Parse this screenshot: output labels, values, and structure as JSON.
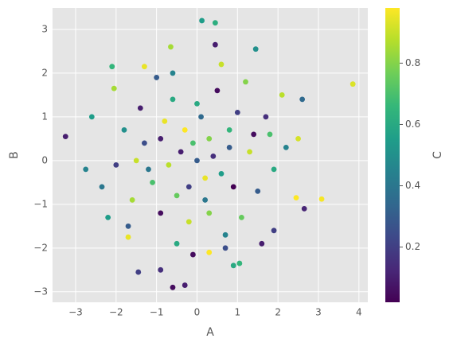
{
  "chart_data": {
    "type": "scatter",
    "x_label": "A",
    "y_label": "B",
    "colorbar_label": "C",
    "colormap": "viridis",
    "grid": true,
    "xlim": [
      -3.57,
      4.22
    ],
    "ylim": [
      -3.24,
      3.49
    ],
    "clim": [
      0.02,
      0.98
    ],
    "xticks": [
      {
        "value": -3,
        "label": "−3"
      },
      {
        "value": -2,
        "label": "−2"
      },
      {
        "value": -1,
        "label": "−1"
      },
      0,
      1,
      2,
      3,
      4
    ],
    "yticks": [
      {
        "value": -3,
        "label": "−3"
      },
      {
        "value": -2,
        "label": "−2"
      },
      {
        "value": -1,
        "label": "−1"
      },
      0,
      1,
      2,
      3
    ],
    "cticks": [
      0.2,
      0.4,
      0.6,
      0.8
    ],
    "x": [
      3.85,
      -3.25,
      3.08,
      0.12,
      0.45,
      -2.1,
      2.65,
      -0.6,
      0.9,
      -1.45,
      -2.75,
      2.6,
      -2.6,
      -0.65,
      0.45,
      1.45,
      -1.7,
      2.45,
      2.1,
      -2.05,
      0.3,
      -0.1,
      1.9,
      -1.3,
      -0.9,
      -0.3,
      1.05,
      -2.35,
      2.5,
      -0.5,
      0.0,
      0.3,
      -0.4,
      0.6,
      -0.8,
      1.0,
      -1.1,
      0.2,
      1.3,
      -1.3,
      0.5,
      -0.6,
      1.5,
      -1.6,
      0.8,
      -0.2,
      1.7,
      -1.8,
      0.1,
      -0.9,
      1.1,
      -0.3,
      0.7,
      -1.4,
      1.9,
      -2.0,
      0.4,
      -0.7,
      0.9,
      -0.1,
      1.2,
      -1.0,
      2.2,
      -2.2,
      0.6,
      -0.5,
      1.6,
      -1.7,
      0.2,
      -0.2,
      0.0,
      -1.2,
      1.4,
      0.8,
      -0.9,
      0.3,
      -0.6,
      1.8,
      -1.5,
      0.7
    ],
    "values": [
      1.75,
      0.55,
      -0.88,
      3.2,
      3.15,
      2.15,
      -1.1,
      -2.9,
      -2.4,
      -2.55,
      -0.2,
      1.4,
      1.0,
      2.6,
      2.65,
      2.55,
      -1.75,
      -0.85,
      1.5,
      1.65,
      -2.1,
      -2.15,
      -1.6,
      2.15,
      -2.5,
      -2.85,
      -2.35,
      -0.6,
      0.5,
      -0.8,
      0.0,
      0.5,
      0.2,
      -0.3,
      0.9,
      1.1,
      -0.5,
      -0.9,
      0.2,
      0.4,
      1.6,
      1.4,
      -0.7,
      -0.9,
      0.7,
      -1.4,
      1.0,
      0.7,
      1.0,
      -1.2,
      -1.3,
      0.7,
      -1.7,
      1.2,
      -0.2,
      -0.1,
      0.1,
      -0.1,
      -0.6,
      0.4,
      1.8,
      1.9,
      0.3,
      -1.3,
      2.2,
      -1.9,
      -1.9,
      -1.5,
      -0.4,
      -0.6,
      1.3,
      -0.2,
      0.6,
      0.3,
      0.5,
      -1.2,
      2.0,
      0.6,
      0.0,
      -2.0
    ],
    "c": [
      0.93,
      0.1,
      0.97,
      0.55,
      0.62,
      0.65,
      0.12,
      0.05,
      0.6,
      0.2,
      0.45,
      0.35,
      0.55,
      0.85,
      0.1,
      0.5,
      0.95,
      0.98,
      0.88,
      0.85,
      0.98,
      0.05,
      0.2,
      0.95,
      0.15,
      0.1,
      0.65,
      0.4,
      0.92,
      0.75,
      0.3,
      0.8,
      0.1,
      0.55,
      0.95,
      0.2,
      0.7,
      0.4,
      0.9,
      0.25,
      0.05,
      0.6,
      0.3,
      0.85,
      0.65,
      0.9,
      0.15,
      0.5,
      0.35,
      0.05,
      0.75,
      0.98,
      0.45,
      0.1,
      0.6,
      0.2,
      0.15,
      0.88,
      0.02,
      0.7,
      0.8,
      0.3,
      0.45,
      0.55,
      0.9,
      0.6,
      0.1,
      0.3,
      0.95,
      0.2,
      0.6,
      0.4,
      0.05,
      0.3,
      0.1,
      0.8,
      0.45,
      0.7,
      0.9,
      0.25
    ]
  }
}
